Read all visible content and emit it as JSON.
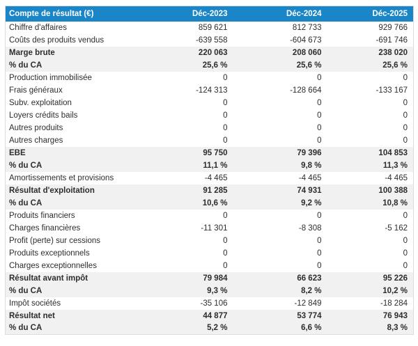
{
  "colors": {
    "header_bg": "#1a86c8",
    "header_text": "#ffffff",
    "emphasis_row_bg": "#f1f1f1",
    "row_text": "#2d2d2d",
    "table_border": "#dddddd"
  },
  "table": {
    "header": {
      "label": "Compte de résultat (€)",
      "columns": [
        "Déc-2023",
        "Déc-2024",
        "Déc-2025"
      ]
    },
    "rows": [
      {
        "label": "Chiffre d'affaires",
        "values": [
          "859 621",
          "812 733",
          "929 766"
        ],
        "emphasis": false
      },
      {
        "label": "Coûts des produits vendus",
        "values": [
          "-639 558",
          "-604 673",
          "-691 746"
        ],
        "emphasis": false
      },
      {
        "label": "Marge brute",
        "values": [
          "220 063",
          "208 060",
          "238 020"
        ],
        "emphasis": true
      },
      {
        "label": "% du CA",
        "values": [
          "25,6 %",
          "25,6 %",
          "25,6 %"
        ],
        "emphasis": true
      },
      {
        "label": "Production immobilisée",
        "values": [
          "0",
          "0",
          "0"
        ],
        "emphasis": false
      },
      {
        "label": "Frais généraux",
        "values": [
          "-124 313",
          "-128 664",
          "-133 167"
        ],
        "emphasis": false
      },
      {
        "label": "Subv. exploitation",
        "values": [
          "0",
          "0",
          "0"
        ],
        "emphasis": false
      },
      {
        "label": "Loyers crédits bails",
        "values": [
          "0",
          "0",
          "0"
        ],
        "emphasis": false
      },
      {
        "label": "Autres produits",
        "values": [
          "0",
          "0",
          "0"
        ],
        "emphasis": false
      },
      {
        "label": "Autres charges",
        "values": [
          "0",
          "0",
          "0"
        ],
        "emphasis": false
      },
      {
        "label": "EBE",
        "values": [
          "95 750",
          "79 396",
          "104 853"
        ],
        "emphasis": true
      },
      {
        "label": "% du CA",
        "values": [
          "11,1 %",
          "9,8 %",
          "11,3 %"
        ],
        "emphasis": true
      },
      {
        "label": "Amortissements et provisions",
        "values": [
          "-4 465",
          "-4 465",
          "-4 465"
        ],
        "emphasis": false
      },
      {
        "label": "Résultat d'exploitation",
        "values": [
          "91 285",
          "74 931",
          "100 388"
        ],
        "emphasis": true
      },
      {
        "label": "% du CA",
        "values": [
          "10,6 %",
          "9,2 %",
          "10,8 %"
        ],
        "emphasis": true
      },
      {
        "label": "Produits financiers",
        "values": [
          "0",
          "0",
          "0"
        ],
        "emphasis": false
      },
      {
        "label": "Charges financières",
        "values": [
          "-11 301",
          "-8 308",
          "-5 162"
        ],
        "emphasis": false
      },
      {
        "label": "Profit (perte) sur cessions",
        "values": [
          "0",
          "0",
          "0"
        ],
        "emphasis": false
      },
      {
        "label": "Produits exceptionnels",
        "values": [
          "0",
          "0",
          "0"
        ],
        "emphasis": false
      },
      {
        "label": "Charges exceptionnelles",
        "values": [
          "0",
          "0",
          "0"
        ],
        "emphasis": false
      },
      {
        "label": "Résultat avant impôt",
        "values": [
          "79 984",
          "66 623",
          "95 226"
        ],
        "emphasis": true
      },
      {
        "label": "% du CA",
        "values": [
          "9,3 %",
          "8,2 %",
          "10,2 %"
        ],
        "emphasis": true
      },
      {
        "label": "Impôt sociétés",
        "values": [
          "-35 106",
          "-12 849",
          "-18 284"
        ],
        "emphasis": false
      },
      {
        "label": "Résultat net",
        "values": [
          "44 877",
          "53 774",
          "76 943"
        ],
        "emphasis": true
      },
      {
        "label": "% du CA",
        "values": [
          "5,2 %",
          "6,6 %",
          "8,3 %"
        ],
        "emphasis": true
      }
    ]
  }
}
